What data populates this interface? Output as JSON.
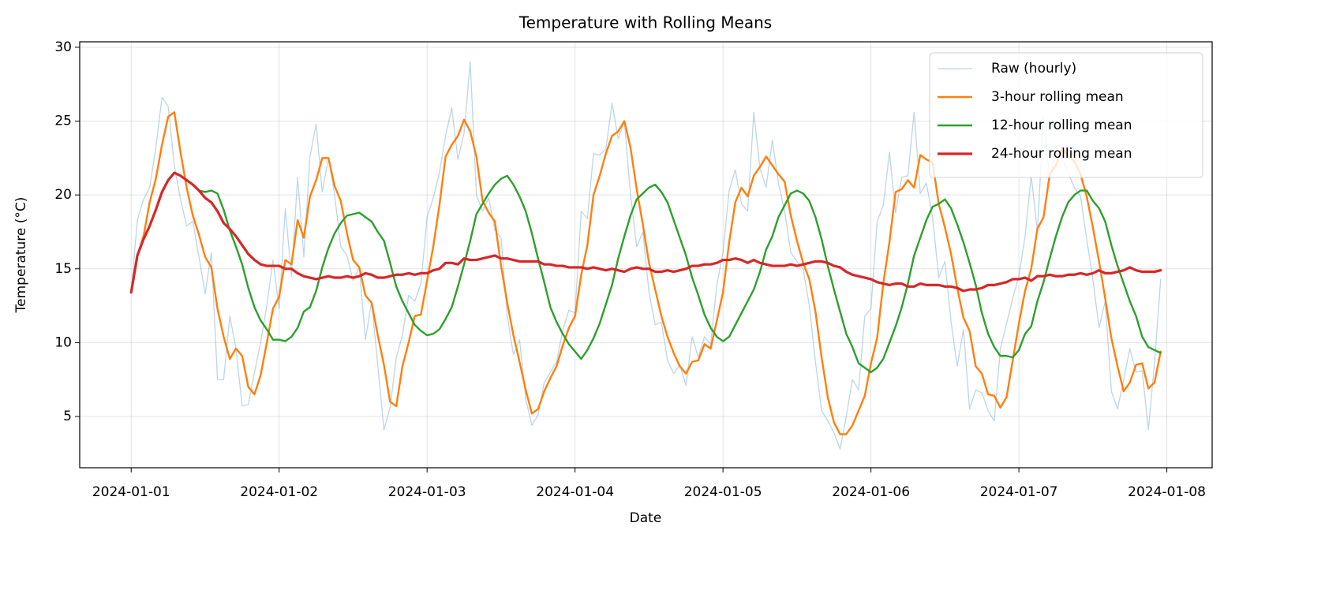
{
  "chart_data": {
    "type": "line",
    "title": "Temperature with Rolling Means",
    "xlabel": "Date",
    "ylabel": "Temperature (°C)",
    "grid": true,
    "legend": "upper right",
    "xlim": [
      -8.35,
      175.35
    ],
    "ylim": [
      1.53,
      30.37
    ],
    "xticks": [
      {
        "value": 0,
        "label": "2024-01-01"
      },
      {
        "value": 24,
        "label": "2024-01-02"
      },
      {
        "value": 48,
        "label": "2024-01-03"
      },
      {
        "value": 72,
        "label": "2024-01-04"
      },
      {
        "value": 96,
        "label": "2024-01-05"
      },
      {
        "value": 120,
        "label": "2024-01-06"
      },
      {
        "value": 144,
        "label": "2024-01-07"
      },
      {
        "value": 168,
        "label": "2024-01-08"
      }
    ],
    "yticks": [
      5,
      10,
      15,
      20,
      25,
      30
    ],
    "x": [
      0,
      1,
      2,
      3,
      4,
      5,
      6,
      7,
      8,
      9,
      10,
      11,
      12,
      13,
      14,
      15,
      16,
      17,
      18,
      19,
      20,
      21,
      22,
      23,
      24,
      25,
      26,
      27,
      28,
      29,
      30,
      31,
      32,
      33,
      34,
      35,
      36,
      37,
      38,
      39,
      40,
      41,
      42,
      43,
      44,
      45,
      46,
      47,
      48,
      49,
      50,
      51,
      52,
      53,
      54,
      55,
      56,
      57,
      58,
      59,
      60,
      61,
      62,
      63,
      64,
      65,
      66,
      67,
      68,
      69,
      70,
      71,
      72,
      73,
      74,
      75,
      76,
      77,
      78,
      79,
      80,
      81,
      82,
      83,
      84,
      85,
      86,
      87,
      88,
      89,
      90,
      91,
      92,
      93,
      94,
      95,
      96,
      97,
      98,
      99,
      100,
      101,
      102,
      103,
      104,
      105,
      106,
      107,
      108,
      109,
      110,
      111,
      112,
      113,
      114,
      115,
      116,
      117,
      118,
      119,
      120,
      121,
      122,
      123,
      124,
      125,
      126,
      127,
      128,
      129,
      130,
      131,
      132,
      133,
      134,
      135,
      136,
      137,
      138,
      139,
      140,
      141,
      142,
      143,
      144,
      145,
      146,
      147,
      148,
      149,
      150,
      151,
      152,
      153,
      154,
      155,
      156,
      157,
      158,
      159,
      160,
      161,
      162,
      163,
      164,
      165,
      166,
      167
    ],
    "series": [
      {
        "name": "Raw (hourly)",
        "color": "#1f77b4",
        "opacity": 0.3,
        "linewidth": 1.3,
        "values": [
          13.4,
          18.3,
          19.7,
          20.5,
          23.2,
          26.6,
          26.0,
          22.0,
          19.7,
          17.9,
          18.2,
          15.8,
          13.3,
          16.1,
          7.5,
          7.5,
          11.8,
          9.6,
          5.7,
          5.8,
          8.0,
          10.0,
          12.5,
          15.6,
          12.3,
          19.1,
          14.5,
          21.2,
          15.8,
          22.6,
          24.8,
          20.2,
          22.5,
          20.0,
          16.5,
          15.9,
          14.2,
          15.1,
          10.2,
          12.8,
          8.5,
          4.1,
          5.6,
          9.0,
          10.5,
          13.2,
          12.8,
          14.0,
          18.5,
          19.8,
          21.5,
          24.0,
          25.9,
          22.4,
          24.2,
          29.0,
          20.0,
          18.9,
          19.8,
          17.6,
          17.1,
          11.8,
          9.2,
          10.2,
          6.2,
          4.4,
          5.1,
          7.3,
          8.0,
          8.7,
          10.8,
          12.2,
          12.0,
          18.9,
          18.4,
          22.8,
          22.7,
          23.1,
          26.2,
          23.8,
          25.0,
          20.0,
          16.5,
          17.5,
          13.4,
          11.2,
          11.4,
          8.8,
          7.9,
          8.5,
          7.1,
          10.4,
          9.0,
          10.4,
          9.9,
          13.9,
          16.1,
          20.3,
          21.7,
          19.4,
          18.9,
          25.6,
          21.8,
          20.5,
          23.7,
          20.8,
          18.9,
          16.1,
          15.5,
          15.0,
          12.5,
          8.7,
          5.4,
          4.7,
          3.9,
          2.8,
          5.0,
          7.5,
          6.8,
          11.8,
          12.3,
          18.2,
          19.3,
          22.9,
          18.8,
          21.2,
          21.3,
          25.6,
          20.1,
          20.8,
          18.5,
          14.4,
          15.5,
          11.4,
          8.4,
          10.9,
          5.5,
          6.8,
          6.6,
          5.4,
          4.7,
          9.6,
          11.3,
          13.0,
          14.5,
          17.2,
          21.3,
          17.5,
          25.3,
          21.0,
          22.9,
          22.5,
          21.5,
          20.5,
          19.9,
          17.0,
          14.3,
          11.0,
          12.8,
          6.7,
          5.5,
          7.5,
          9.6,
          8.0,
          8.1,
          4.1,
          8.6,
          14.3
        ]
      },
      {
        "name": "3-hour rolling mean",
        "color": "#ff7f0e",
        "opacity": 1,
        "linewidth": 2.4,
        "values": [
          13.4,
          15.9,
          17.2,
          19.5,
          21.1,
          23.4,
          25.3,
          25.6,
          22.9,
          20.5,
          18.6,
          17.3,
          15.8,
          15.1,
          12.3,
          10.4,
          8.9,
          9.6,
          9.1,
          7.0,
          6.5,
          7.8,
          10.0,
          12.3,
          13.1,
          15.6,
          15.3,
          18.3,
          17.1,
          19.9,
          21.0,
          22.5,
          22.5,
          20.6,
          19.6,
          17.4,
          15.6,
          15.1,
          13.2,
          12.7,
          10.5,
          8.5,
          6.0,
          5.7,
          8.4,
          10.0,
          11.8,
          11.9,
          14.2,
          16.5,
          19.3,
          22.6,
          23.4,
          24.0,
          25.1,
          24.3,
          22.6,
          19.6,
          18.8,
          18.2,
          15.2,
          12.7,
          10.5,
          8.7,
          6.8,
          5.2,
          5.5,
          6.7,
          7.6,
          8.4,
          9.8,
          11.0,
          11.8,
          14.6,
          16.6,
          20.0,
          21.3,
          22.8,
          24.0,
          24.3,
          25.0,
          23.2,
          20.4,
          18.0,
          15.4,
          13.6,
          11.8,
          10.4,
          9.3,
          8.4,
          7.9,
          8.7,
          8.8,
          9.9,
          9.6,
          11.5,
          13.4,
          16.8,
          19.5,
          20.5,
          19.9,
          21.3,
          21.9,
          22.6,
          22.0,
          21.4,
          20.9,
          18.6,
          16.9,
          15.4,
          14.3,
          12.1,
          9.0,
          6.3,
          4.6,
          3.8,
          3.8,
          4.4,
          5.4,
          6.4,
          8.6,
          10.3,
          14.0,
          16.8,
          20.2,
          20.4,
          21.0,
          20.5,
          22.7,
          22.4,
          22.2,
          19.4,
          17.8,
          16.0,
          13.7,
          11.7,
          10.8,
          8.4,
          7.9,
          6.5,
          6.4,
          5.6,
          6.3,
          8.8,
          11.3,
          13.5,
          15.0,
          17.7,
          18.5,
          21.4,
          22.0,
          23.2,
          22.6,
          22.3,
          21.4,
          19.9,
          17.8,
          15.5,
          13.0,
          10.3,
          8.4,
          6.7,
          7.3,
          8.5,
          8.6,
          6.9,
          7.3,
          9.4
        ]
      },
      {
        "name": "12-hour rolling mean",
        "color": "#2ca02c",
        "opacity": 1,
        "linewidth": 2.4,
        "values": [
          13.4,
          15.9,
          17.0,
          17.9,
          19.0,
          20.2,
          21.0,
          21.5,
          21.3,
          21.0,
          20.7,
          20.3,
          20.2,
          20.3,
          20.1,
          19.0,
          17.6,
          16.5,
          15.3,
          13.7,
          12.4,
          11.5,
          10.9,
          10.2,
          10.2,
          10.1,
          10.4,
          11.0,
          12.1,
          12.4,
          13.5,
          15.1,
          16.4,
          17.4,
          18.1,
          18.6,
          18.7,
          18.8,
          18.5,
          18.2,
          17.5,
          16.9,
          15.4,
          13.8,
          12.8,
          12.0,
          11.2,
          10.8,
          10.5,
          10.6,
          10.9,
          11.6,
          12.4,
          13.8,
          15.3,
          16.9,
          18.7,
          19.4,
          20.1,
          20.7,
          21.1,
          21.3,
          20.7,
          19.9,
          18.9,
          17.4,
          15.7,
          14.1,
          12.4,
          11.4,
          10.6,
          9.9,
          9.4,
          8.9,
          9.5,
          10.3,
          11.3,
          12.6,
          13.9,
          15.7,
          17.2,
          18.6,
          19.7,
          20.1,
          20.5,
          20.7,
          20.2,
          19.5,
          18.3,
          17.1,
          15.9,
          14.4,
          13.2,
          11.9,
          11.0,
          10.4,
          10.1,
          10.4,
          11.2,
          12.0,
          12.8,
          13.6,
          14.8,
          16.3,
          17.2,
          18.5,
          19.3,
          20.1,
          20.3,
          20.1,
          19.6,
          18.5,
          17.0,
          15.2,
          13.6,
          12.1,
          10.6,
          9.7,
          8.6,
          8.3,
          8.0,
          8.3,
          8.9,
          10.0,
          11.1,
          12.4,
          14.0,
          15.9,
          17.1,
          18.3,
          19.2,
          19.4,
          19.7,
          19.1,
          18.0,
          16.8,
          15.4,
          13.9,
          12.0,
          10.6,
          9.7,
          9.1,
          9.1,
          9.0,
          9.5,
          10.6,
          11.1,
          12.8,
          14.1,
          15.7,
          17.2,
          18.5,
          19.5,
          20.0,
          20.3,
          20.3,
          19.6,
          19.1,
          18.2,
          16.6,
          15.2,
          14.0,
          12.8,
          11.8,
          10.4,
          9.7,
          9.5,
          9.3
        ]
      },
      {
        "name": "24-hour rolling mean",
        "color": "#d62728",
        "opacity": 1,
        "linewidth": 3.2,
        "values": [
          13.4,
          15.9,
          17.0,
          17.9,
          19.0,
          20.2,
          21.0,
          21.5,
          21.3,
          21.0,
          20.7,
          20.3,
          19.8,
          19.5,
          18.9,
          18.1,
          17.7,
          17.2,
          16.6,
          16.0,
          15.6,
          15.3,
          15.2,
          15.2,
          15.2,
          15.0,
          15.0,
          14.7,
          14.5,
          14.4,
          14.3,
          14.4,
          14.5,
          14.4,
          14.4,
          14.5,
          14.4,
          14.5,
          14.7,
          14.6,
          14.4,
          14.4,
          14.5,
          14.6,
          14.6,
          14.7,
          14.6,
          14.7,
          14.7,
          14.9,
          15.0,
          15.4,
          15.4,
          15.3,
          15.7,
          15.6,
          15.6,
          15.7,
          15.8,
          15.9,
          15.7,
          15.7,
          15.6,
          15.5,
          15.5,
          15.5,
          15.5,
          15.3,
          15.3,
          15.2,
          15.2,
          15.1,
          15.1,
          15.1,
          15.0,
          15.1,
          15.0,
          14.9,
          15.0,
          14.9,
          14.8,
          15.0,
          15.1,
          15.0,
          15.0,
          14.8,
          14.8,
          14.9,
          14.8,
          14.9,
          15.0,
          15.2,
          15.2,
          15.3,
          15.3,
          15.4,
          15.6,
          15.6,
          15.7,
          15.6,
          15.4,
          15.6,
          15.4,
          15.3,
          15.2,
          15.2,
          15.2,
          15.3,
          15.2,
          15.3,
          15.4,
          15.5,
          15.5,
          15.4,
          15.2,
          15.1,
          14.8,
          14.6,
          14.5,
          14.4,
          14.3,
          14.1,
          14.0,
          13.9,
          14.0,
          14.0,
          13.8,
          13.8,
          14.0,
          13.9,
          13.9,
          13.9,
          13.8,
          13.8,
          13.7,
          13.5,
          13.6,
          13.6,
          13.7,
          13.9,
          13.9,
          14.0,
          14.1,
          14.3,
          14.3,
          14.4,
          14.2,
          14.5,
          14.5,
          14.6,
          14.5,
          14.5,
          14.6,
          14.6,
          14.7,
          14.6,
          14.7,
          14.9,
          14.7,
          14.7,
          14.8,
          14.9,
          15.1,
          14.9,
          14.8,
          14.8,
          14.8,
          14.9
        ]
      }
    ]
  }
}
